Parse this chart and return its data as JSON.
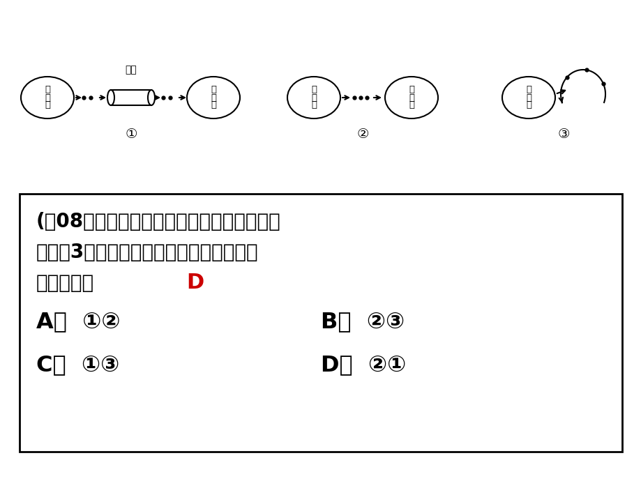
{
  "bg_color": "#ffffff",
  "answer_color": "#cc0000",
  "border_color": "#000000",
  "line1": "(（08江苏卷）上图表示人体内化学物质传输",
  "line2": "信息的3种方式。神经递质和性激素的传输",
  "line3": "方式依次是",
  "answer_D": "D",
  "optA": "A．  ①②",
  "optB": "B．  ②③",
  "optC": "C．  ①③",
  "optD": "D．  ②①",
  "blood_vessel_label": "血管",
  "cell_jia": [
    "细",
    "胞",
    "甲"
  ],
  "cell_yi": [
    "细",
    "胞",
    "乙"
  ],
  "label1": "①",
  "label2": "②",
  "label3": "③"
}
